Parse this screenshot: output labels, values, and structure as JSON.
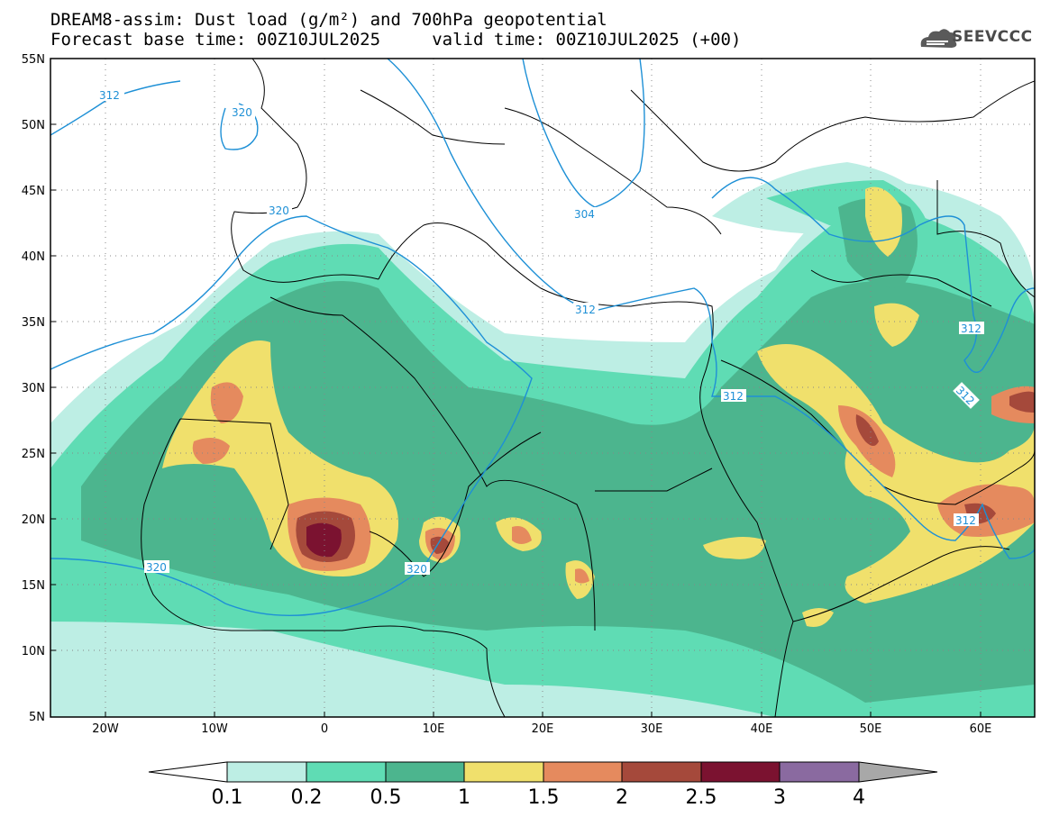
{
  "header": {
    "title_line1": "DREAM8-assim: Dust load (g/m²) and 700hPa geopotential",
    "title_line2": "Forecast base time: 00Z10JUL2025     valid time: 00Z10JUL2025 (+00)"
  },
  "logo": {
    "text": "SEEVCCC",
    "icon": "cloud-icon"
  },
  "axes": {
    "lon_ticks": [
      "20W",
      "10W",
      "0",
      "10E",
      "20E",
      "30E",
      "40E",
      "50E",
      "60E"
    ],
    "lat_ticks": [
      "55N",
      "50N",
      "45N",
      "40N",
      "35N",
      "30N",
      "25N",
      "20N",
      "15N",
      "10N",
      "5N"
    ]
  },
  "contours": {
    "labels": [
      "312",
      "320",
      "320",
      "304",
      "312",
      "312",
      "312",
      "312",
      "320",
      "320",
      "312"
    ],
    "color": "#1e90d6"
  },
  "colorbar": {
    "labels": [
      "0.1",
      "0.2",
      "0.5",
      "1",
      "1.5",
      "2",
      "2.5",
      "3",
      "4"
    ],
    "colors": [
      "#ffffff",
      "#bdeee4",
      "#5fdcb4",
      "#4cb58e",
      "#f0e06c",
      "#e58a5e",
      "#a5493b",
      "#7b1230",
      "#8a6aa0",
      "#a8a8a8"
    ]
  },
  "palette": {
    "ocean": "#ffffff",
    "c1": "#bdeee4",
    "c2": "#5fdcb4",
    "c3": "#4cb58e",
    "c4": "#f0e06c",
    "c5": "#e58a5e",
    "c6": "#a5493b",
    "c7": "#7b1230"
  }
}
